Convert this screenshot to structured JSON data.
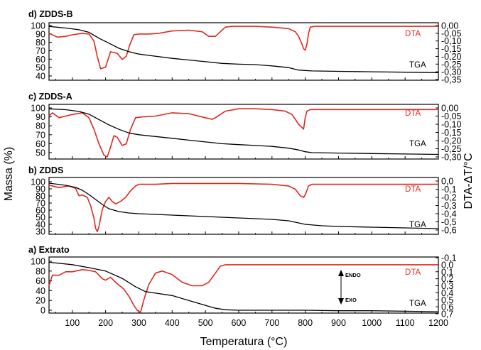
{
  "chart_data": {
    "type": "line",
    "xlabel": "Temperatura (°C)",
    "ylabel_left": "Massa (%)",
    "ylabel_right": "DTA-ΔT/°C",
    "xlim": [
      30,
      1200
    ],
    "x_ticks": [
      "100",
      "200",
      "300",
      "400",
      "500",
      "600",
      "700",
      "800",
      "900",
      "1000",
      "1100",
      "1200"
    ],
    "colors": {
      "dta": "#e0281e",
      "tga": "#000000"
    },
    "panels": [
      {
        "title": "d) ZDDS-B",
        "left_ticks": [
          "100",
          "90",
          "80",
          "70",
          "60",
          "50",
          "40"
        ],
        "left_lim": [
          37,
          102
        ],
        "right_ticks": [
          "0,00",
          "-0,05",
          "-0,10",
          "-0,15",
          "-0,20",
          "-0,25",
          "-0,30",
          "-0,35"
        ],
        "right_lim": [
          -0.35,
          0.0
        ],
        "series": [
          {
            "name": "DTA",
            "axis": "right",
            "x": [
              30,
              55,
              80,
              100,
              130,
              150,
              165,
              175,
              185,
              200,
              215,
              235,
              250,
              262,
              272,
              285,
              300,
              330,
              360,
              400,
              450,
              490,
              510,
              530,
              545,
              560,
              580,
              600,
              650,
              700,
              750,
              770,
              780,
              790,
              795,
              800,
              805,
              810,
              815,
              830,
              900,
              1000,
              1100,
              1200
            ],
            "y": [
              -0.05,
              -0.075,
              -0.07,
              -0.06,
              -0.05,
              -0.055,
              -0.1,
              -0.2,
              -0.28,
              -0.27,
              -0.17,
              -0.18,
              -0.22,
              -0.2,
              -0.13,
              -0.06,
              -0.055,
              -0.055,
              -0.05,
              -0.035,
              -0.03,
              -0.04,
              -0.07,
              -0.07,
              -0.04,
              -0.01,
              -0.005,
              -0.005,
              -0.005,
              -0.01,
              -0.02,
              -0.04,
              -0.07,
              -0.12,
              -0.15,
              -0.16,
              -0.12,
              -0.05,
              -0.01,
              -0.005,
              -0.005,
              -0.005,
              -0.005,
              -0.005
            ]
          },
          {
            "name": "TGA",
            "axis": "left",
            "x": [
              30,
              80,
              120,
              150,
              180,
              210,
              240,
              270,
              300,
              340,
              400,
              450,
              500,
              550,
              600,
              650,
              700,
              750,
              780,
              800,
              820,
              900,
              1000,
              1100,
              1200
            ],
            "y": [
              99,
              97,
              95,
              92,
              85,
              79,
              73,
              69,
              66,
              64,
              61,
              59,
              57,
              55,
              54,
              53.5,
              52,
              50,
              47,
              46.5,
              46,
              45.5,
              45,
              44.5,
              44
            ]
          }
        ]
      },
      {
        "title": "c) ZDDS-A",
        "left_ticks": [
          "100",
          "90",
          "80",
          "70",
          "60",
          "50"
        ],
        "left_lim": [
          43,
          102
        ],
        "right_ticks": [
          "0,00",
          "-0,05",
          "-0,10",
          "-0,15",
          "-0,20",
          "-0,25",
          "-0,30"
        ],
        "right_lim": [
          -0.32,
          0.0
        ],
        "series": [
          {
            "name": "DTA",
            "axis": "right",
            "x": [
              30,
              40,
              60,
              80,
              100,
              130,
              150,
              165,
              180,
              195,
              205,
              215,
              225,
              235,
              250,
              262,
              275,
              290,
              310,
              350,
              400,
              450,
              500,
              520,
              530,
              545,
              560,
              600,
              650,
              700,
              740,
              760,
              770,
              780,
              790,
              795,
              800,
              805,
              815,
              850,
              900,
              1000,
              1100,
              1200
            ],
            "y": [
              -0.05,
              -0.03,
              -0.06,
              -0.05,
              -0.04,
              -0.03,
              -0.06,
              -0.13,
              -0.22,
              -0.29,
              -0.3,
              -0.24,
              -0.17,
              -0.18,
              -0.23,
              -0.22,
              -0.13,
              -0.06,
              -0.055,
              -0.05,
              -0.03,
              -0.035,
              -0.06,
              -0.07,
              -0.06,
              -0.04,
              -0.02,
              -0.005,
              -0.005,
              -0.01,
              -0.02,
              -0.04,
              -0.07,
              -0.1,
              -0.12,
              -0.13,
              -0.06,
              -0.02,
              -0.01,
              -0.01,
              -0.01,
              -0.01,
              -0.01,
              -0.01
            ]
          },
          {
            "name": "TGA",
            "axis": "left",
            "x": [
              30,
              80,
              120,
              150,
              180,
              210,
              240,
              270,
              300,
              350,
              400,
              450,
              500,
              550,
              600,
              650,
              700,
              750,
              780,
              800,
              820,
              900,
              1000,
              1100,
              1200
            ],
            "y": [
              99,
              98,
              96,
              93,
              87,
              81,
              76,
              72,
              70,
              68,
              66,
              64,
              62,
              60,
              59,
              58,
              57,
              55,
              53,
              51,
              50,
              49.5,
              49,
              48.5,
              48
            ]
          }
        ]
      },
      {
        "title": "b) ZDDS",
        "left_ticks": [
          "100",
          "90",
          "80",
          "70",
          "60",
          "50",
          "40",
          "30"
        ],
        "left_lim": [
          28,
          102
        ],
        "right_ticks": [
          "0,0",
          "-0,1",
          "-0,2",
          "-0,3",
          "-0,4",
          "-0,5",
          "-0,6"
        ],
        "right_lim": [
          -0.63,
          0.0
        ],
        "series": [
          {
            "name": "DTA",
            "axis": "right",
            "x": [
              30,
              60,
              90,
              110,
              120,
              130,
              145,
              155,
              165,
              170,
              175,
              180,
              190,
              200,
              210,
              220,
              230,
              245,
              260,
              275,
              290,
              300,
              350,
              400,
              500,
              600,
              700,
              750,
              770,
              785,
              795,
              800,
              810,
              820,
              900,
              1000,
              1100,
              1200
            ],
            "y": [
              -0.05,
              -0.08,
              -0.06,
              -0.09,
              -0.18,
              -0.17,
              -0.2,
              -0.3,
              -0.45,
              -0.58,
              -0.62,
              -0.56,
              -0.35,
              -0.25,
              -0.2,
              -0.25,
              -0.28,
              -0.25,
              -0.2,
              -0.12,
              -0.06,
              -0.04,
              -0.04,
              -0.03,
              -0.03,
              -0.03,
              -0.04,
              -0.06,
              -0.1,
              -0.18,
              -0.2,
              -0.17,
              -0.06,
              -0.04,
              -0.04,
              -0.04,
              -0.04,
              -0.04
            ]
          },
          {
            "name": "TGA",
            "axis": "left",
            "x": [
              30,
              80,
              110,
              130,
              150,
              170,
              190,
              210,
              240,
              270,
              300,
              350,
              400,
              450,
              500,
              550,
              600,
              650,
              700,
              750,
              780,
              800,
              850,
              900,
              1000,
              1100,
              1200
            ],
            "y": [
              98,
              95,
              92,
              88,
              82,
              75,
              68,
              62,
              58,
              56,
              55,
              54,
              53,
              52,
              51,
              50,
              49,
              48,
              47,
              45,
              42,
              40,
              38,
              37,
              36,
              35,
              34
            ]
          }
        ]
      },
      {
        "title": "a) Extrato",
        "left_ticks": [
          "100",
          "80",
          "60",
          "40",
          "20",
          "0"
        ],
        "left_lim": [
          -5,
          102
        ],
        "right_ticks": [
          "-0,1",
          "0,0",
          "0,1",
          "0,2",
          "0,3",
          "0,4",
          "0,5",
          "0,6",
          "0,7"
        ],
        "right_lim": [
          -0.12,
          0.72
        ],
        "series": [
          {
            "name": "DTA",
            "axis": "right",
            "x": [
              30,
              40,
              60,
              80,
              100,
              130,
              150,
              170,
              190,
              200,
              215,
              230,
              255,
              270,
              285,
              295,
              305,
              315,
              330,
              350,
              370,
              400,
              430,
              460,
              490,
              510,
              530,
              545,
              560,
              600,
              700,
              800,
              900,
              1000,
              1100,
              1200
            ],
            "y": [
              0.3,
              0.15,
              0.15,
              0.1,
              0.1,
              0.07,
              0.08,
              0.1,
              0.2,
              0.22,
              0.18,
              0.25,
              0.35,
              0.45,
              0.58,
              0.65,
              0.68,
              0.5,
              0.28,
              0.12,
              0.09,
              0.14,
              0.25,
              0.3,
              0.3,
              0.25,
              0.12,
              0.02,
              0.0,
              0.0,
              0.0,
              0.0,
              0.0,
              0.0,
              0.0,
              0.0
            ]
          },
          {
            "name": "TGA",
            "axis": "left",
            "x": [
              30,
              100,
              150,
              200,
              250,
              290,
              320,
              350,
              400,
              450,
              500,
              530,
              560,
              600,
              700,
              800,
              900,
              1000,
              1100,
              1200
            ],
            "y": [
              98,
              93,
              87,
              80,
              65,
              48,
              38,
              35,
              30,
              20,
              10,
              4,
              1,
              0,
              0,
              0,
              -1,
              -1,
              -2,
              -3
            ]
          }
        ]
      }
    ],
    "annotations": {
      "endo": "ENDO",
      "exo": "EXO"
    }
  }
}
